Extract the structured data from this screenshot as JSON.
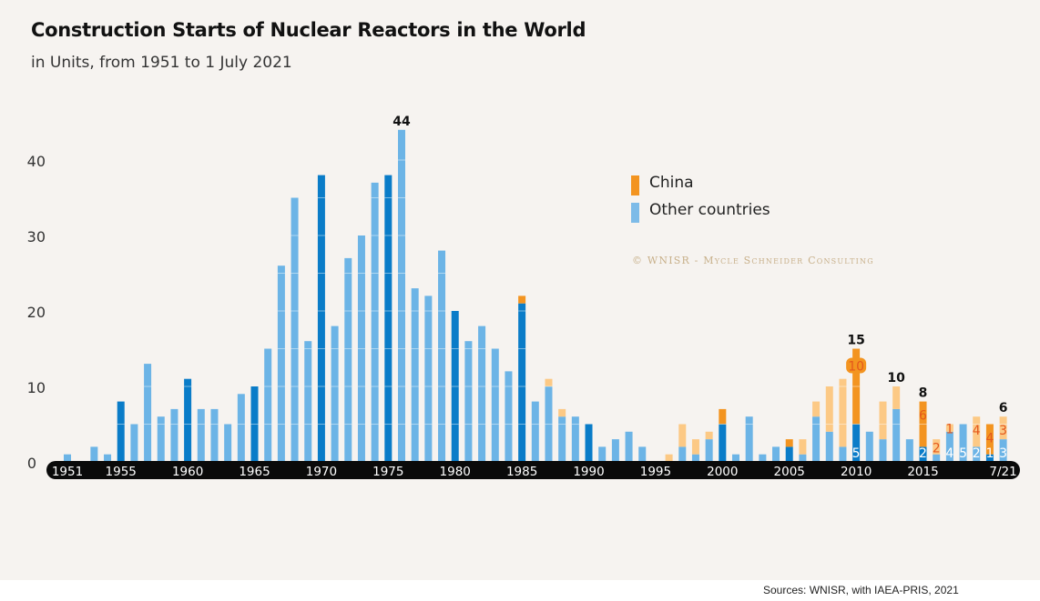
{
  "chart_data": {
    "type": "bar",
    "stacked": true,
    "title": "Construction Starts of Nuclear Reactors in the World",
    "subtitle": "in Units, from 1951 to 1 July 2021",
    "xlabel": "",
    "ylabel": "",
    "ylim": [
      0,
      45
    ],
    "yticks": [
      0,
      10,
      20,
      30,
      40
    ],
    "x_tick_labels": [
      "1951",
      "1955",
      "1960",
      "1965",
      "1970",
      "1975",
      "1980",
      "1985",
      "1990",
      "1995",
      "2000",
      "2005",
      "2010",
      "2015",
      "7/21"
    ],
    "x_tick_years": [
      1951,
      1955,
      1960,
      1965,
      1970,
      1975,
      1980,
      1985,
      1990,
      1995,
      2000,
      2005,
      2010,
      2015,
      2021
    ],
    "categories": [
      1951,
      1952,
      1953,
      1954,
      1955,
      1956,
      1957,
      1958,
      1959,
      1960,
      1961,
      1962,
      1963,
      1964,
      1965,
      1966,
      1967,
      1968,
      1969,
      1970,
      1971,
      1972,
      1973,
      1974,
      1975,
      1976,
      1977,
      1978,
      1979,
      1980,
      1981,
      1982,
      1983,
      1984,
      1985,
      1986,
      1987,
      1988,
      1989,
      1990,
      1991,
      1992,
      1993,
      1994,
      1995,
      1996,
      1997,
      1998,
      1999,
      2000,
      2001,
      2002,
      2003,
      2004,
      2005,
      2006,
      2007,
      2008,
      2009,
      2010,
      2011,
      2012,
      2013,
      2014,
      2015,
      2016,
      2017,
      2018,
      2019,
      2020,
      2021
    ],
    "series": [
      {
        "name": "Other countries",
        "color": "#6cb4e6",
        "highlight_color": "#0a7cc8",
        "values": [
          1,
          0,
          2,
          1,
          8,
          5,
          13,
          6,
          7,
          11,
          7,
          7,
          5,
          9,
          10,
          15,
          26,
          35,
          16,
          38,
          18,
          27,
          30,
          37,
          38,
          44,
          23,
          22,
          28,
          20,
          16,
          18,
          15,
          12,
          21,
          8,
          10,
          6,
          6,
          5,
          2,
          3,
          4,
          2,
          0,
          0,
          2,
          1,
          3,
          5,
          1,
          6,
          1,
          2,
          2,
          1,
          6,
          4,
          2,
          5,
          4,
          3,
          7,
          3,
          2,
          1,
          4,
          5,
          2,
          1,
          3
        ]
      },
      {
        "name": "China",
        "color": "#fcc985",
        "highlight_color": "#f39420",
        "values": [
          0,
          0,
          0,
          0,
          0,
          0,
          0,
          0,
          0,
          0,
          0,
          0,
          0,
          0,
          0,
          0,
          0,
          0,
          0,
          0,
          0,
          0,
          0,
          0,
          0,
          0,
          0,
          0,
          0,
          0,
          0,
          0,
          0,
          0,
          1,
          0,
          1,
          1,
          0,
          0,
          0,
          0,
          0,
          0,
          0,
          1,
          3,
          2,
          1,
          2,
          0,
          0,
          0,
          0,
          1,
          2,
          2,
          6,
          9,
          10,
          0,
          5,
          3,
          0,
          6,
          2,
          1,
          0,
          4,
          4,
          3
        ]
      }
    ],
    "highlight_years": [
      1955,
      1960,
      1965,
      1970,
      1975,
      1980,
      1985,
      1990,
      1995,
      2000,
      2005,
      2010,
      2015,
      2020
    ],
    "total_labels": [
      {
        "year": 1976,
        "text": "44"
      },
      {
        "year": 2010,
        "text": "15"
      },
      {
        "year": 2013,
        "text": "10"
      },
      {
        "year": 2015,
        "text": "8"
      },
      {
        "year": 2021,
        "text": "6"
      }
    ],
    "china_labels": [
      {
        "year": 2010,
        "text": "10",
        "boxed": true
      },
      {
        "year": 2015,
        "text": "6"
      },
      {
        "year": 2016,
        "text": "2"
      },
      {
        "year": 2017,
        "text": "1"
      },
      {
        "year": 2019,
        "text": "4"
      },
      {
        "year": 2020,
        "text": "4"
      },
      {
        "year": 2021,
        "text": "3"
      }
    ],
    "other_labels": [
      {
        "year": 2010,
        "text": "5"
      },
      {
        "year": 2015,
        "text": "2"
      },
      {
        "year": 2017,
        "text": "4"
      },
      {
        "year": 2018,
        "text": "5"
      },
      {
        "year": 2019,
        "text": "2"
      },
      {
        "year": 2020,
        "text": "1"
      },
      {
        "year": 2021,
        "text": "3"
      }
    ],
    "legend": {
      "placement": "top-right",
      "items": [
        {
          "label": "China",
          "color": "#f39420"
        },
        {
          "label": "Other countries",
          "color": "#7dbbe8"
        }
      ]
    },
    "grid": false
  },
  "header": {
    "title": "Construction Starts of Nuclear Reactors in the World",
    "subtitle": "in Units, from 1951 to 1 July 2021"
  },
  "watermark": "© WNISR - Mycle Schneider Consulting",
  "source": "Sources: WNISR, with IAEA-PRIS, 2021"
}
